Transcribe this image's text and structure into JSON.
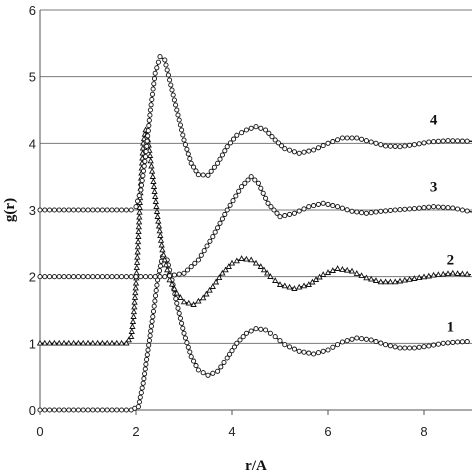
{
  "chart_data": {
    "type": "line",
    "title": "",
    "xlabel": "r/A",
    "ylabel": "g(r)",
    "xlim": [
      0,
      9
    ],
    "ylim": [
      0,
      6
    ],
    "xticks": [
      "0",
      "2",
      "4",
      "6",
      "8"
    ],
    "yticks": [
      "0",
      "1",
      "2",
      "3",
      "4",
      "5",
      "6"
    ],
    "grid": "horizontal",
    "legend": "none",
    "series": [
      {
        "name": "1",
        "marker": "circle",
        "line": "dashed",
        "points": [
          [
            0,
            0
          ],
          [
            1.0,
            0
          ],
          [
            1.9,
            0
          ],
          [
            2.05,
            0.05
          ],
          [
            2.15,
            0.4
          ],
          [
            2.25,
            0.9
          ],
          [
            2.35,
            1.4
          ],
          [
            2.45,
            1.95
          ],
          [
            2.55,
            2.3
          ],
          [
            2.65,
            2.25
          ],
          [
            2.75,
            1.95
          ],
          [
            2.85,
            1.6
          ],
          [
            3.0,
            1.15
          ],
          [
            3.15,
            0.8
          ],
          [
            3.3,
            0.6
          ],
          [
            3.5,
            0.52
          ],
          [
            3.7,
            0.58
          ],
          [
            3.9,
            0.78
          ],
          [
            4.1,
            1.0
          ],
          [
            4.3,
            1.15
          ],
          [
            4.5,
            1.22
          ],
          [
            4.7,
            1.2
          ],
          [
            4.9,
            1.1
          ],
          [
            5.1,
            0.98
          ],
          [
            5.4,
            0.88
          ],
          [
            5.7,
            0.84
          ],
          [
            6.0,
            0.9
          ],
          [
            6.3,
            1.02
          ],
          [
            6.6,
            1.08
          ],
          [
            6.9,
            1.05
          ],
          [
            7.2,
            0.98
          ],
          [
            7.5,
            0.93
          ],
          [
            7.8,
            0.93
          ],
          [
            8.1,
            0.96
          ],
          [
            8.4,
            1.0
          ],
          [
            8.7,
            1.02
          ],
          [
            9.0,
            1.03
          ]
        ]
      },
      {
        "name": "2",
        "marker": "triangle",
        "line": "dashed",
        "points": [
          [
            0,
            1
          ],
          [
            1.0,
            1
          ],
          [
            1.8,
            1
          ],
          [
            1.9,
            1.1
          ],
          [
            1.95,
            1.4
          ],
          [
            2.0,
            1.9
          ],
          [
            2.05,
            2.6
          ],
          [
            2.1,
            3.4
          ],
          [
            2.15,
            4.0
          ],
          [
            2.2,
            4.2
          ],
          [
            2.25,
            4.05
          ],
          [
            2.35,
            3.5
          ],
          [
            2.45,
            2.9
          ],
          [
            2.55,
            2.4
          ],
          [
            2.7,
            1.95
          ],
          [
            2.85,
            1.75
          ],
          [
            3.0,
            1.62
          ],
          [
            3.2,
            1.58
          ],
          [
            3.4,
            1.68
          ],
          [
            3.6,
            1.85
          ],
          [
            3.8,
            2.05
          ],
          [
            4.0,
            2.2
          ],
          [
            4.2,
            2.27
          ],
          [
            4.4,
            2.25
          ],
          [
            4.6,
            2.15
          ],
          [
            4.8,
            2.0
          ],
          [
            5.0,
            1.88
          ],
          [
            5.3,
            1.82
          ],
          [
            5.6,
            1.88
          ],
          [
            5.9,
            2.03
          ],
          [
            6.2,
            2.12
          ],
          [
            6.5,
            2.08
          ],
          [
            6.8,
            1.98
          ],
          [
            7.1,
            1.92
          ],
          [
            7.4,
            1.92
          ],
          [
            7.8,
            1.97
          ],
          [
            8.2,
            2.02
          ],
          [
            8.6,
            2.05
          ],
          [
            9.0,
            2.03
          ]
        ]
      },
      {
        "name": "3",
        "marker": "circle",
        "line": "solid",
        "points": [
          [
            0,
            2
          ],
          [
            1.0,
            2
          ],
          [
            2.0,
            2
          ],
          [
            2.6,
            2.0
          ],
          [
            3.0,
            2.05
          ],
          [
            3.3,
            2.25
          ],
          [
            3.6,
            2.6
          ],
          [
            3.9,
            3.0
          ],
          [
            4.2,
            3.35
          ],
          [
            4.4,
            3.5
          ],
          [
            4.55,
            3.4
          ],
          [
            4.75,
            3.1
          ],
          [
            5.0,
            2.9
          ],
          [
            5.3,
            2.95
          ],
          [
            5.6,
            3.05
          ],
          [
            5.9,
            3.1
          ],
          [
            6.2,
            3.05
          ],
          [
            6.5,
            2.98
          ],
          [
            6.8,
            2.95
          ],
          [
            7.1,
            2.98
          ],
          [
            7.4,
            3.0
          ],
          [
            7.8,
            3.02
          ],
          [
            8.2,
            3.05
          ],
          [
            8.6,
            3.03
          ],
          [
            9.0,
            2.97
          ]
        ]
      },
      {
        "name": "4",
        "marker": "circle",
        "line": "dashed",
        "points": [
          [
            0,
            3
          ],
          [
            1.0,
            3
          ],
          [
            1.9,
            3
          ],
          [
            2.0,
            3.05
          ],
          [
            2.1,
            3.3
          ],
          [
            2.2,
            3.8
          ],
          [
            2.3,
            4.5
          ],
          [
            2.4,
            5.05
          ],
          [
            2.5,
            5.3
          ],
          [
            2.6,
            5.25
          ],
          [
            2.7,
            4.95
          ],
          [
            2.85,
            4.5
          ],
          [
            3.0,
            4.05
          ],
          [
            3.15,
            3.7
          ],
          [
            3.3,
            3.53
          ],
          [
            3.5,
            3.52
          ],
          [
            3.7,
            3.7
          ],
          [
            3.9,
            3.95
          ],
          [
            4.1,
            4.12
          ],
          [
            4.3,
            4.2
          ],
          [
            4.5,
            4.25
          ],
          [
            4.7,
            4.2
          ],
          [
            4.9,
            4.05
          ],
          [
            5.1,
            3.92
          ],
          [
            5.4,
            3.85
          ],
          [
            5.7,
            3.9
          ],
          [
            6.0,
            4.0
          ],
          [
            6.3,
            4.08
          ],
          [
            6.6,
            4.08
          ],
          [
            6.9,
            4.02
          ],
          [
            7.2,
            3.96
          ],
          [
            7.5,
            3.95
          ],
          [
            7.8,
            3.98
          ],
          [
            8.1,
            4.02
          ],
          [
            8.5,
            4.04
          ],
          [
            9.0,
            4.03
          ]
        ]
      }
    ]
  }
}
